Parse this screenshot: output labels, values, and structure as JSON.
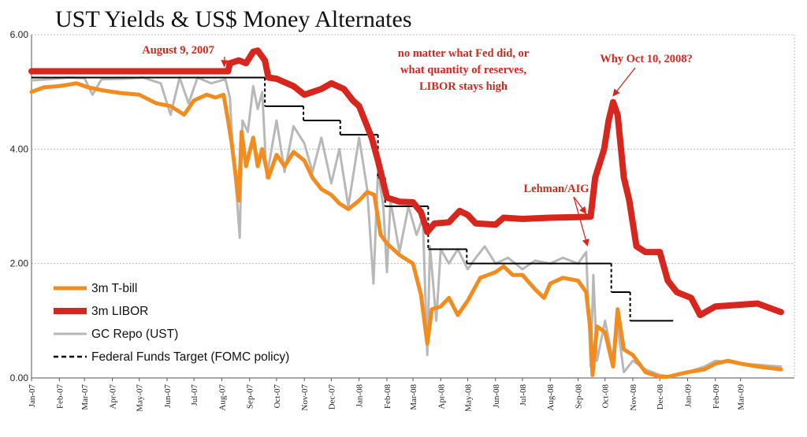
{
  "chart_data": {
    "type": "line",
    "title": "UST Yields & US$ Money Alternates",
    "ylim": [
      0,
      6
    ],
    "yticks": [
      "0.00",
      "2.00",
      "4.00",
      "6.00"
    ],
    "grid": true,
    "xlim": [
      "2007-01-01",
      "2009-04-30"
    ],
    "xticks": [
      {
        "date": "2007-01-01",
        "label": "Jan-07"
      },
      {
        "date": "2007-02-01",
        "label": "Feb-07"
      },
      {
        "date": "2007-03-01",
        "label": "Mar-07"
      },
      {
        "date": "2007-04-01",
        "label": "Apr-07"
      },
      {
        "date": "2007-05-01",
        "label": "May-07"
      },
      {
        "date": "2007-06-01",
        "label": "Jun-07"
      },
      {
        "date": "2007-07-01",
        "label": "Jul-07"
      },
      {
        "date": "2007-08-01",
        "label": "Aug-07"
      },
      {
        "date": "2007-09-01",
        "label": "Sep-07"
      },
      {
        "date": "2007-10-01",
        "label": "Oct-07"
      },
      {
        "date": "2007-11-01",
        "label": "Nov-07"
      },
      {
        "date": "2007-12-01",
        "label": "Dec-07"
      },
      {
        "date": "2008-01-01",
        "label": "Jan-08"
      },
      {
        "date": "2008-02-01",
        "label": "Feb-08"
      },
      {
        "date": "2008-03-01",
        "label": "Mar-08"
      },
      {
        "date": "2008-04-01",
        "label": "Apr-08"
      },
      {
        "date": "2008-05-01",
        "label": "May-08"
      },
      {
        "date": "2008-06-01",
        "label": "Jun-08"
      },
      {
        "date": "2008-07-01",
        "label": "Jul-08"
      },
      {
        "date": "2008-08-01",
        "label": "Aug-08"
      },
      {
        "date": "2008-09-01",
        "label": "Sep-08"
      },
      {
        "date": "2008-10-01",
        "label": "Oct-08"
      },
      {
        "date": "2008-11-01",
        "label": "Nov-08"
      },
      {
        "date": "2008-12-01",
        "label": "Dec-08"
      },
      {
        "date": "2009-01-01",
        "label": "Jan-09"
      },
      {
        "date": "2009-02-01",
        "label": "Feb-09"
      },
      {
        "date": "2009-03-01",
        "label": "Mar-09"
      }
    ],
    "legend_position": "bottom-left",
    "series": [
      {
        "name": "3m T-bill",
        "color": "#f28c1e",
        "style": "solid-medium",
        "points": [
          [
            "2007-01-01",
            5.0
          ],
          [
            "2007-01-15",
            5.08
          ],
          [
            "2007-02-01",
            5.1
          ],
          [
            "2007-02-20",
            5.15
          ],
          [
            "2007-03-05",
            5.08
          ],
          [
            "2007-03-20",
            5.03
          ],
          [
            "2007-04-10",
            4.98
          ],
          [
            "2007-05-01",
            4.95
          ],
          [
            "2007-05-20",
            4.8
          ],
          [
            "2007-06-05",
            4.75
          ],
          [
            "2007-06-20",
            4.6
          ],
          [
            "2007-07-01",
            4.85
          ],
          [
            "2007-07-15",
            4.95
          ],
          [
            "2007-07-25",
            4.9
          ],
          [
            "2007-08-03",
            4.95
          ],
          [
            "2007-08-08",
            4.5
          ],
          [
            "2007-08-12",
            4.1
          ],
          [
            "2007-08-20",
            3.1
          ],
          [
            "2007-08-23",
            4.3
          ],
          [
            "2007-08-28",
            3.7
          ],
          [
            "2007-09-05",
            4.2
          ],
          [
            "2007-09-10",
            3.7
          ],
          [
            "2007-09-15",
            4.0
          ],
          [
            "2007-09-22",
            3.5
          ],
          [
            "2007-10-01",
            3.9
          ],
          [
            "2007-10-10",
            3.7
          ],
          [
            "2007-10-20",
            3.95
          ],
          [
            "2007-11-01",
            3.8
          ],
          [
            "2007-11-10",
            3.5
          ],
          [
            "2007-11-20",
            3.3
          ],
          [
            "2007-12-01",
            3.2
          ],
          [
            "2007-12-10",
            3.05
          ],
          [
            "2007-12-20",
            2.95
          ],
          [
            "2008-01-01",
            3.1
          ],
          [
            "2008-01-10",
            3.25
          ],
          [
            "2008-01-18",
            3.2
          ],
          [
            "2008-01-25",
            2.5
          ],
          [
            "2008-02-01",
            2.35
          ],
          [
            "2008-02-15",
            2.15
          ],
          [
            "2008-03-01",
            2.0
          ],
          [
            "2008-03-10",
            1.45
          ],
          [
            "2008-03-17",
            0.6
          ],
          [
            "2008-03-22",
            1.2
          ],
          [
            "2008-04-01",
            1.25
          ],
          [
            "2008-04-10",
            1.4
          ],
          [
            "2008-04-20",
            1.1
          ],
          [
            "2008-05-01",
            1.35
          ],
          [
            "2008-05-15",
            1.75
          ],
          [
            "2008-06-01",
            1.85
          ],
          [
            "2008-06-10",
            1.95
          ],
          [
            "2008-06-20",
            1.8
          ],
          [
            "2008-07-01",
            1.8
          ],
          [
            "2008-07-15",
            1.55
          ],
          [
            "2008-07-25",
            1.4
          ],
          [
            "2008-08-01",
            1.65
          ],
          [
            "2008-08-15",
            1.75
          ],
          [
            "2008-09-01",
            1.7
          ],
          [
            "2008-09-10",
            1.5
          ],
          [
            "2008-09-15",
            0.8
          ],
          [
            "2008-09-17",
            0.05
          ],
          [
            "2008-09-22",
            0.9
          ],
          [
            "2008-10-01",
            0.8
          ],
          [
            "2008-10-10",
            0.2
          ],
          [
            "2008-10-15",
            1.2
          ],
          [
            "2008-10-22",
            0.5
          ],
          [
            "2008-11-01",
            0.4
          ],
          [
            "2008-11-15",
            0.1
          ],
          [
            "2008-12-01",
            0.02
          ],
          [
            "2008-12-10",
            0.02
          ],
          [
            "2009-01-01",
            0.1
          ],
          [
            "2009-01-20",
            0.15
          ],
          [
            "2009-02-01",
            0.25
          ],
          [
            "2009-02-15",
            0.3
          ],
          [
            "2009-03-01",
            0.25
          ],
          [
            "2009-03-20",
            0.2
          ],
          [
            "2009-04-15",
            0.15
          ]
        ]
      },
      {
        "name": "3m LIBOR",
        "color": "#d7261e",
        "style": "solid-thick",
        "points": [
          [
            "2007-01-01",
            5.36
          ],
          [
            "2007-08-08",
            5.36
          ],
          [
            "2007-08-10",
            5.5
          ],
          [
            "2007-08-20",
            5.55
          ],
          [
            "2007-08-28",
            5.5
          ],
          [
            "2007-09-05",
            5.7
          ],
          [
            "2007-09-10",
            5.72
          ],
          [
            "2007-09-18",
            5.55
          ],
          [
            "2007-09-22",
            5.25
          ],
          [
            "2007-10-01",
            5.23
          ],
          [
            "2007-10-20",
            5.1
          ],
          [
            "2007-11-01",
            4.95
          ],
          [
            "2007-11-20",
            5.05
          ],
          [
            "2007-12-01",
            5.15
          ],
          [
            "2007-12-15",
            5.05
          ],
          [
            "2007-12-25",
            4.85
          ],
          [
            "2008-01-01",
            4.75
          ],
          [
            "2008-01-15",
            4.2
          ],
          [
            "2008-01-22",
            3.8
          ],
          [
            "2008-02-01",
            3.15
          ],
          [
            "2008-02-15",
            3.08
          ],
          [
            "2008-03-01",
            3.07
          ],
          [
            "2008-03-10",
            2.9
          ],
          [
            "2008-03-17",
            2.55
          ],
          [
            "2008-03-25",
            2.7
          ],
          [
            "2008-04-10",
            2.72
          ],
          [
            "2008-04-22",
            2.92
          ],
          [
            "2008-05-01",
            2.85
          ],
          [
            "2008-05-10",
            2.7
          ],
          [
            "2008-06-01",
            2.68
          ],
          [
            "2008-06-10",
            2.8
          ],
          [
            "2008-07-01",
            2.78
          ],
          [
            "2008-08-01",
            2.8
          ],
          [
            "2008-09-01",
            2.81
          ],
          [
            "2008-09-15",
            2.82
          ],
          [
            "2008-09-20",
            3.5
          ],
          [
            "2008-09-30",
            4.0
          ],
          [
            "2008-10-05",
            4.5
          ],
          [
            "2008-10-10",
            4.82
          ],
          [
            "2008-10-15",
            4.6
          ],
          [
            "2008-10-22",
            3.5
          ],
          [
            "2008-10-28",
            3.1
          ],
          [
            "2008-11-05",
            2.3
          ],
          [
            "2008-11-15",
            2.2
          ],
          [
            "2008-12-01",
            2.2
          ],
          [
            "2008-12-10",
            1.7
          ],
          [
            "2008-12-20",
            1.5
          ],
          [
            "2009-01-05",
            1.4
          ],
          [
            "2009-01-15",
            1.1
          ],
          [
            "2009-02-01",
            1.25
          ],
          [
            "2009-03-01",
            1.28
          ],
          [
            "2009-03-20",
            1.3
          ],
          [
            "2009-04-15",
            1.15
          ]
        ]
      },
      {
        "name": "GC Repo (UST)",
        "color": "#b8b8b8",
        "style": "solid-thin",
        "points": [
          [
            "2007-01-01",
            5.2
          ],
          [
            "2007-01-20",
            5.22
          ],
          [
            "2007-02-10",
            5.25
          ],
          [
            "2007-03-01",
            5.24
          ],
          [
            "2007-03-10",
            4.95
          ],
          [
            "2007-03-20",
            5.22
          ],
          [
            "2007-04-15",
            5.23
          ],
          [
            "2007-05-05",
            5.25
          ],
          [
            "2007-05-25",
            5.15
          ],
          [
            "2007-06-05",
            4.6
          ],
          [
            "2007-06-15",
            5.25
          ],
          [
            "2007-06-25",
            4.8
          ],
          [
            "2007-07-05",
            5.25
          ],
          [
            "2007-07-20",
            5.15
          ],
          [
            "2007-08-05",
            5.22
          ],
          [
            "2007-08-10",
            4.9
          ],
          [
            "2007-08-14",
            3.8
          ],
          [
            "2007-08-18",
            3.1
          ],
          [
            "2007-08-21",
            2.45
          ],
          [
            "2007-08-24",
            4.5
          ],
          [
            "2007-08-30",
            4.3
          ],
          [
            "2007-09-05",
            5.1
          ],
          [
            "2007-09-10",
            4.7
          ],
          [
            "2007-09-15",
            5.0
          ],
          [
            "2007-09-20",
            3.5
          ],
          [
            "2007-10-01",
            4.5
          ],
          [
            "2007-10-10",
            3.6
          ],
          [
            "2007-10-20",
            4.4
          ],
          [
            "2007-11-01",
            4.1
          ],
          [
            "2007-11-10",
            3.6
          ],
          [
            "2007-11-20",
            4.2
          ],
          [
            "2007-12-01",
            3.4
          ],
          [
            "2007-12-10",
            4.0
          ],
          [
            "2007-12-20",
            3.0
          ],
          [
            "2008-01-01",
            4.2
          ],
          [
            "2008-01-10",
            3.3
          ],
          [
            "2008-01-17",
            1.65
          ],
          [
            "2008-01-22",
            3.6
          ],
          [
            "2008-01-28",
            3.0
          ],
          [
            "2008-02-01",
            1.85
          ],
          [
            "2008-02-05",
            3.1
          ],
          [
            "2008-02-15",
            2.2
          ],
          [
            "2008-02-25",
            3.0
          ],
          [
            "2008-03-05",
            2.5
          ],
          [
            "2008-03-12",
            2.8
          ],
          [
            "2008-03-17",
            0.4
          ],
          [
            "2008-03-20",
            2.3
          ],
          [
            "2008-03-27",
            1.0
          ],
          [
            "2008-04-01",
            2.25
          ],
          [
            "2008-04-10",
            2.0
          ],
          [
            "2008-04-20",
            2.25
          ],
          [
            "2008-05-01",
            1.9
          ],
          [
            "2008-05-10",
            2.1
          ],
          [
            "2008-05-20",
            2.3
          ],
          [
            "2008-06-01",
            2.0
          ],
          [
            "2008-06-15",
            2.1
          ],
          [
            "2008-07-01",
            1.9
          ],
          [
            "2008-07-15",
            2.05
          ],
          [
            "2008-08-01",
            2.0
          ],
          [
            "2008-08-15",
            2.1
          ],
          [
            "2008-09-01",
            2.0
          ],
          [
            "2008-09-10",
            2.2
          ],
          [
            "2008-09-15",
            0.2
          ],
          [
            "2008-09-18",
            1.8
          ],
          [
            "2008-09-22",
            0.3
          ],
          [
            "2008-10-01",
            1.0
          ],
          [
            "2008-10-10",
            0.3
          ],
          [
            "2008-10-15",
            0.9
          ],
          [
            "2008-10-22",
            0.1
          ],
          [
            "2008-11-01",
            0.3
          ],
          [
            "2008-11-15",
            0.15
          ],
          [
            "2008-12-01",
            0.05
          ],
          [
            "2008-12-15",
            0.02
          ],
          [
            "2009-01-01",
            0.1
          ],
          [
            "2009-01-20",
            0.2
          ],
          [
            "2009-02-01",
            0.3
          ],
          [
            "2009-02-15",
            0.28
          ],
          [
            "2009-03-01",
            0.25
          ],
          [
            "2009-04-15",
            0.2
          ]
        ]
      },
      {
        "name": "Federal Funds Target (FOMC policy)",
        "color": "#000000",
        "style": "step-dashed-verticals",
        "points": [
          [
            "2007-01-01",
            5.25
          ],
          [
            "2007-09-18",
            4.75
          ],
          [
            "2007-10-31",
            4.5
          ],
          [
            "2007-12-11",
            4.25
          ],
          [
            "2008-01-22",
            3.5
          ],
          [
            "2008-01-30",
            3.0
          ],
          [
            "2008-03-18",
            2.25
          ],
          [
            "2008-04-30",
            2.0
          ],
          [
            "2008-10-08",
            1.5
          ],
          [
            "2008-10-29",
            1.0
          ],
          [
            "2008-12-16",
            1.0
          ]
        ]
      }
    ],
    "annotations": [
      {
        "lines": [
          "August 9, 2007"
        ],
        "target": [
          "2007-08-09",
          5.36
        ]
      },
      {
        "lines": [
          "no matter what Fed did, or",
          "what quantity of reserves,",
          "LIBOR stays high"
        ]
      },
      {
        "lines": [
          "Why Oct 10, 2008?"
        ],
        "target": [
          "2008-10-10",
          4.82
        ]
      },
      {
        "lines": [
          "Lehman/AIG"
        ],
        "targets": [
          [
            "2008-09-15",
            2.82
          ],
          [
            "2008-09-15",
            2.2
          ]
        ]
      }
    ]
  }
}
